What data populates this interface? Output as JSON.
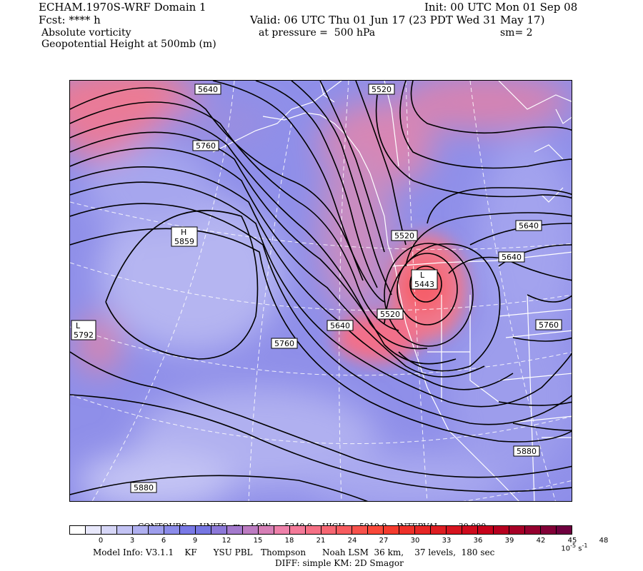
{
  "header": {
    "model_domain": "ECHAM.1970S-WRF Domain 1",
    "init": "Init: 00 UTC Mon 01 Sep 08",
    "fcst": "Fcst: **** h",
    "valid": "Valid: 06 UTC Thu 01 Jun 17 (23 PDT Wed 31 May 17)",
    "field1": "Absolute vorticity",
    "pressure": "at pressure =  500 hPa",
    "smooth": "sm= 2",
    "field2": "Geopotential Height at 500mb (m)"
  },
  "map": {
    "contour_labels": [
      {
        "text": "5640"
      },
      {
        "text": "5520"
      },
      {
        "text": "5760"
      },
      {
        "text": "5520"
      },
      {
        "text": "5640"
      },
      {
        "text": "5640"
      },
      {
        "text": "5520"
      },
      {
        "text": "5640"
      },
      {
        "text": "5760"
      },
      {
        "text": "5760"
      },
      {
        "text": "5880"
      },
      {
        "text": "5880"
      }
    ],
    "centers": [
      {
        "type": "H",
        "value": "5859"
      },
      {
        "type": "L",
        "value": "5443"
      },
      {
        "type": "L",
        "value": "5792"
      }
    ]
  },
  "contours_info": {
    "label": "CONTOURS:",
    "units": "UNITS=m",
    "low": "LOW=   5340.0",
    "high": "HIGH=   5910.0",
    "interval": "INTERVAL=     30.000"
  },
  "colorbar": {
    "ticks": [
      "0",
      "3",
      "6",
      "9",
      "12",
      "15",
      "18",
      "21",
      "24",
      "27",
      "30",
      "33",
      "36",
      "39",
      "42",
      "45",
      "48"
    ],
    "units_base": "10",
    "units_exp": "-5",
    "units_tail": "s",
    "units_tail_exp": "-1",
    "colors": [
      "#ffffff",
      "#e8e8fb",
      "#d6d6f7",
      "#c3c3f4",
      "#b0b0f0",
      "#9e9eed",
      "#8b8be9",
      "#7979e6",
      "#7676e2",
      "#8c78d8",
      "#a47acd",
      "#bd7cc2",
      "#d67fb6",
      "#ee81aa",
      "#f47a99",
      "#f57085",
      "#f66672",
      "#f75c5f",
      "#f8524c",
      "#f94839",
      "#f53b2e",
      "#ee3029",
      "#e62625",
      "#de1d22",
      "#d6141f",
      "#ce0b1d",
      "#c6021b",
      "#b7001f",
      "#a70027",
      "#95002f",
      "#820037",
      "#6f003f"
    ]
  },
  "footer": {
    "model_info": "Model Info: V3.1.1    KF      YSU PBL   Thompson      Noah LSM  36 km,    37 levels,  180 sec",
    "diff": "DIFF: simple KM: 2D Smagor"
  }
}
